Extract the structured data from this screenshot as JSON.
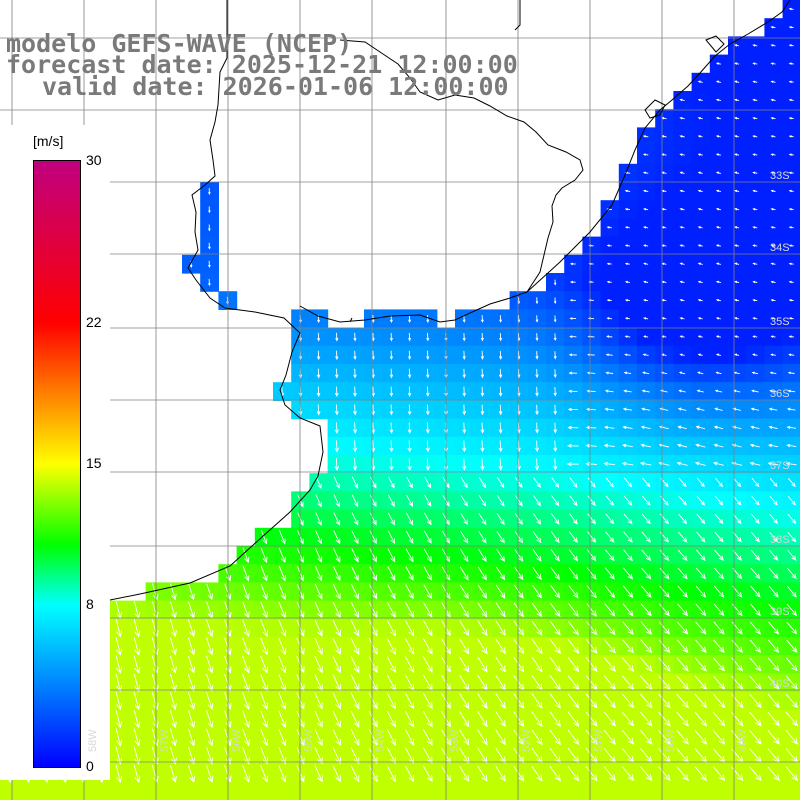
{
  "title": {
    "line1": "modelo GEFS-WAVE (NCEP)",
    "line2": "forecast date: 2025-12-21 12:00:00",
    "line3": "valid date: 2026-01-06 12:00:00"
  },
  "colorbar": {
    "unit": "[m/s]",
    "ticks": [
      "30",
      "22",
      "15",
      "8",
      "0"
    ],
    "tick_values": [
      30,
      22,
      15,
      8,
      0
    ],
    "stops": [
      {
        "v": 0,
        "color": "#0000ff"
      },
      {
        "v": 4,
        "color": "#0080ff"
      },
      {
        "v": 8,
        "color": "#00ffff"
      },
      {
        "v": 11,
        "color": "#00ff00"
      },
      {
        "v": 15,
        "color": "#ffff00"
      },
      {
        "v": 22,
        "color": "#ff0000"
      },
      {
        "v": 30,
        "color": "#c0007f"
      }
    ]
  },
  "lat_labels": [
    "33S",
    "34S",
    "35S",
    "36S",
    "37S",
    "38S",
    "39S",
    "40S"
  ],
  "lon_labels": [
    "58W",
    "57W",
    "56W",
    "55W",
    "54W",
    "53W",
    "52W",
    "51W",
    "50W",
    "49W"
  ],
  "colors": {
    "grid": "#808080",
    "coast": "#000000",
    "arrow": "#ffffff",
    "land": "#ffffff"
  }
}
